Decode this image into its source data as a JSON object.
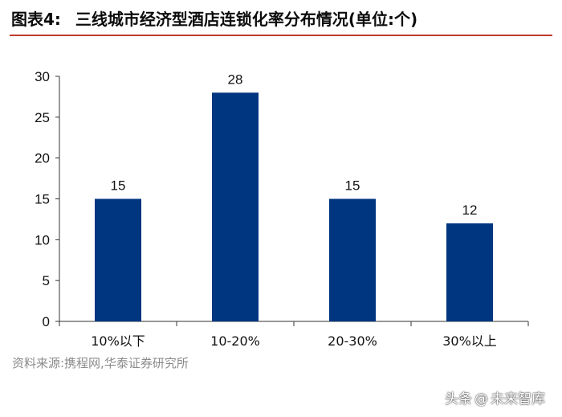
{
  "header": {
    "label": "图表4:",
    "title": "三线城市经济型酒店连锁化率分布情况(单位:个)",
    "rule_color": "#c0392b"
  },
  "chart_data": {
    "type": "bar",
    "categories": [
      "10%以下",
      "10-20%",
      "20-30%",
      "30%以上"
    ],
    "values": [
      15,
      28,
      15,
      12
    ],
    "title": "三线城市经济型酒店连锁化率分布情况(单位:个)",
    "xlabel": "",
    "ylabel": "",
    "ylim": [
      0,
      30
    ],
    "yticks": [
      0,
      5,
      10,
      15,
      20,
      25,
      30
    ],
    "grid": false,
    "legend": "none",
    "bar_color": "#003580",
    "data_labels": true
  },
  "footer": {
    "source": "资料来源:携程网,华泰证券研究所"
  },
  "watermark": {
    "prefix": "头条",
    "at": "@",
    "name": "未来智库"
  }
}
